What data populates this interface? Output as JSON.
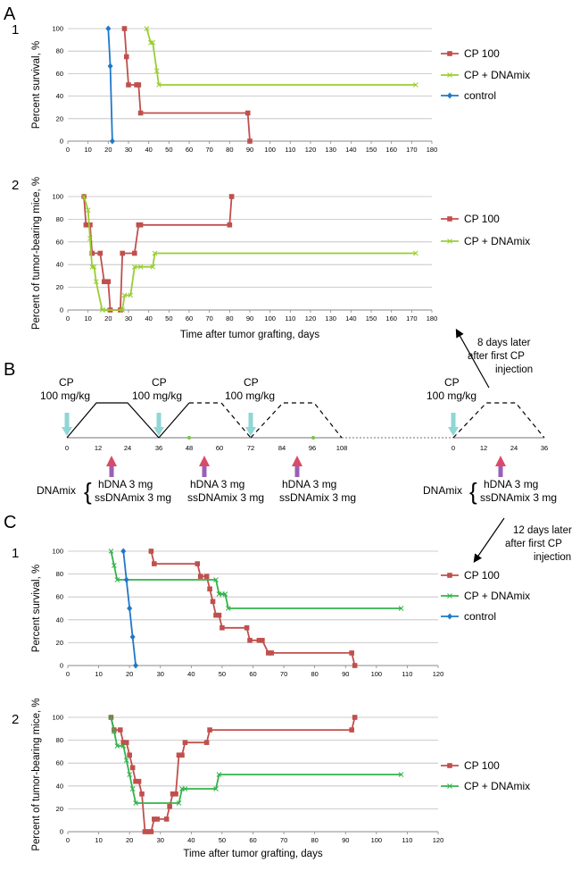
{
  "panels": {
    "a": "A",
    "b": "B",
    "c": "C"
  },
  "colors": {
    "cp100": "#c0504d",
    "cp_dna_light": "#9acd32",
    "cp_dna_dark": "#33b24a",
    "control": "#1f78c8",
    "grid": "#bdbdbd",
    "arrow_teal": "#8fd6d6",
    "arrow_dna": "#9b5fb5",
    "arrow_dna_tip": "#d94b6a"
  },
  "chart_data": [
    {
      "id": "A1",
      "type": "line",
      "sublabel": "1",
      "step": true,
      "ylabel": "Percent survival, %",
      "xlabel": "",
      "xlim": [
        0,
        180
      ],
      "ylim": [
        0,
        100
      ],
      "xticks": [
        0,
        10,
        20,
        30,
        40,
        50,
        60,
        70,
        80,
        90,
        100,
        110,
        120,
        130,
        140,
        150,
        160,
        170,
        180
      ],
      "yticks": [
        0,
        20,
        40,
        60,
        80,
        100
      ],
      "series": [
        {
          "name": "CP 100",
          "color": "#c0504d",
          "marker": "square",
          "x": [
            28,
            29,
            30,
            34,
            35,
            36,
            89,
            90
          ],
          "y": [
            100,
            75,
            50,
            50,
            50,
            25,
            25,
            0
          ]
        },
        {
          "name": "CP + DNAmix",
          "color": "#9acd32",
          "marker": "x",
          "x": [
            39,
            41,
            42,
            44,
            45,
            172
          ],
          "y": [
            100,
            87.5,
            87.5,
            62.5,
            50,
            50
          ]
        },
        {
          "name": "control",
          "color": "#1f78c8",
          "marker": "diamond",
          "x": [
            20,
            21,
            22
          ],
          "y": [
            100,
            66.7,
            0
          ]
        }
      ]
    },
    {
      "id": "A2",
      "type": "line",
      "sublabel": "2",
      "step": true,
      "ylabel": "Percent of tumor-bearing mice, %",
      "xlabel": "Time after tumor grafting, days",
      "xlim": [
        0,
        180
      ],
      "ylim": [
        0,
        100
      ],
      "xticks": [
        0,
        10,
        20,
        30,
        40,
        50,
        60,
        70,
        80,
        90,
        100,
        110,
        120,
        130,
        140,
        150,
        160,
        170,
        180
      ],
      "yticks": [
        0,
        20,
        40,
        60,
        80,
        100
      ],
      "series": [
        {
          "name": "CP 100",
          "color": "#c0504d",
          "marker": "square",
          "x": [
            8,
            9,
            11,
            12,
            16,
            18,
            20,
            21,
            26,
            27,
            33,
            35,
            36,
            80,
            81
          ],
          "y": [
            100,
            75,
            75,
            50,
            50,
            25,
            25,
            0,
            0,
            50,
            50,
            75,
            75,
            75,
            100
          ]
        },
        {
          "name": "CP + DNAmix",
          "color": "#9acd32",
          "marker": "x",
          "x": [
            8,
            10,
            11,
            12,
            13,
            14,
            17,
            19,
            27,
            28,
            31,
            33,
            36,
            42,
            43,
            172
          ],
          "y": [
            100,
            88,
            63,
            38,
            38,
            25,
            0,
            0,
            0,
            13,
            13,
            38,
            38,
            38,
            50,
            50
          ]
        }
      ]
    },
    {
      "id": "C1",
      "type": "line",
      "sublabel": "1",
      "step": true,
      "ylabel": "Percent survival, %",
      "xlabel": "",
      "xlim": [
        0,
        120
      ],
      "ylim": [
        0,
        100
      ],
      "xticks": [
        0,
        10,
        20,
        30,
        40,
        50,
        60,
        70,
        80,
        90,
        100,
        110,
        120
      ],
      "yticks": [
        0,
        20,
        40,
        60,
        80,
        100
      ],
      "series": [
        {
          "name": "CP 100",
          "color": "#c0504d",
          "marker": "square",
          "x": [
            27,
            28,
            42,
            43,
            45,
            46,
            47,
            48,
            49,
            50,
            58,
            59,
            62,
            63,
            65,
            66,
            92,
            93
          ],
          "y": [
            100,
            89,
            89,
            78,
            78,
            67,
            56,
            44,
            44,
            33,
            33,
            22,
            22,
            22,
            11,
            11,
            11,
            0
          ]
        },
        {
          "name": "CP + DNAmix",
          "color": "#33b24a",
          "marker": "x",
          "x": [
            14,
            15,
            16,
            48,
            49,
            50,
            51,
            52,
            108
          ],
          "y": [
            100,
            87.5,
            75,
            75,
            62.5,
            62.5,
            62.5,
            50,
            50
          ]
        },
        {
          "name": "control",
          "color": "#1f78c8",
          "marker": "diamond",
          "x": [
            18,
            19,
            20,
            21,
            22
          ],
          "y": [
            100,
            75,
            50,
            25,
            0
          ]
        }
      ]
    },
    {
      "id": "C2",
      "type": "line",
      "sublabel": "2",
      "step": true,
      "ylabel": "Percent of tumor-bearing mice, %",
      "xlabel": "Time after tumor grafting, days",
      "xlim": [
        0,
        120
      ],
      "ylim": [
        0,
        100
      ],
      "xticks": [
        0,
        10,
        20,
        30,
        40,
        50,
        60,
        70,
        80,
        90,
        100,
        110,
        120
      ],
      "yticks": [
        0,
        20,
        40,
        60,
        80,
        100
      ],
      "series": [
        {
          "name": "CP 100",
          "color": "#c0504d",
          "marker": "square",
          "x": [
            14,
            15,
            17,
            18,
            19,
            20,
            21,
            22,
            23,
            24,
            25,
            26,
            27,
            28,
            29,
            32,
            33,
            34,
            35,
            36,
            37,
            38,
            45,
            46,
            92,
            93
          ],
          "y": [
            100,
            89,
            89,
            78,
            78,
            67,
            56,
            44,
            44,
            33,
            0,
            0,
            0,
            11,
            11,
            11,
            22,
            33,
            33,
            67,
            67,
            78,
            78,
            89,
            89,
            100
          ]
        },
        {
          "name": "CP + DNAmix",
          "color": "#33b24a",
          "marker": "x",
          "x": [
            14,
            15,
            16,
            18,
            19,
            20,
            21,
            22,
            36,
            37,
            38,
            48,
            49,
            108
          ],
          "y": [
            100,
            87.5,
            75,
            75,
            62.5,
            50,
            37.5,
            25,
            25,
            37.5,
            37.5,
            37.5,
            50,
            50
          ]
        }
      ]
    }
  ],
  "schedule": {
    "cp_label": "CP",
    "cp_dose": "100 mg/kg",
    "dnamix_label": "DNAmix",
    "hdna": "hDNA 3 mg",
    "ssdna": "ssDNAmix 3 mg",
    "ticks_left": [
      "0",
      "12",
      "24",
      "36",
      "48",
      "60",
      "72",
      "84",
      "96",
      "108"
    ],
    "ticks_right": [
      "0",
      "12",
      "24",
      "36"
    ]
  },
  "notes": {
    "a": [
      "8 days later",
      "after first CP",
      "injection"
    ],
    "c": [
      "12 days later",
      "after first CP",
      "injection"
    ]
  }
}
